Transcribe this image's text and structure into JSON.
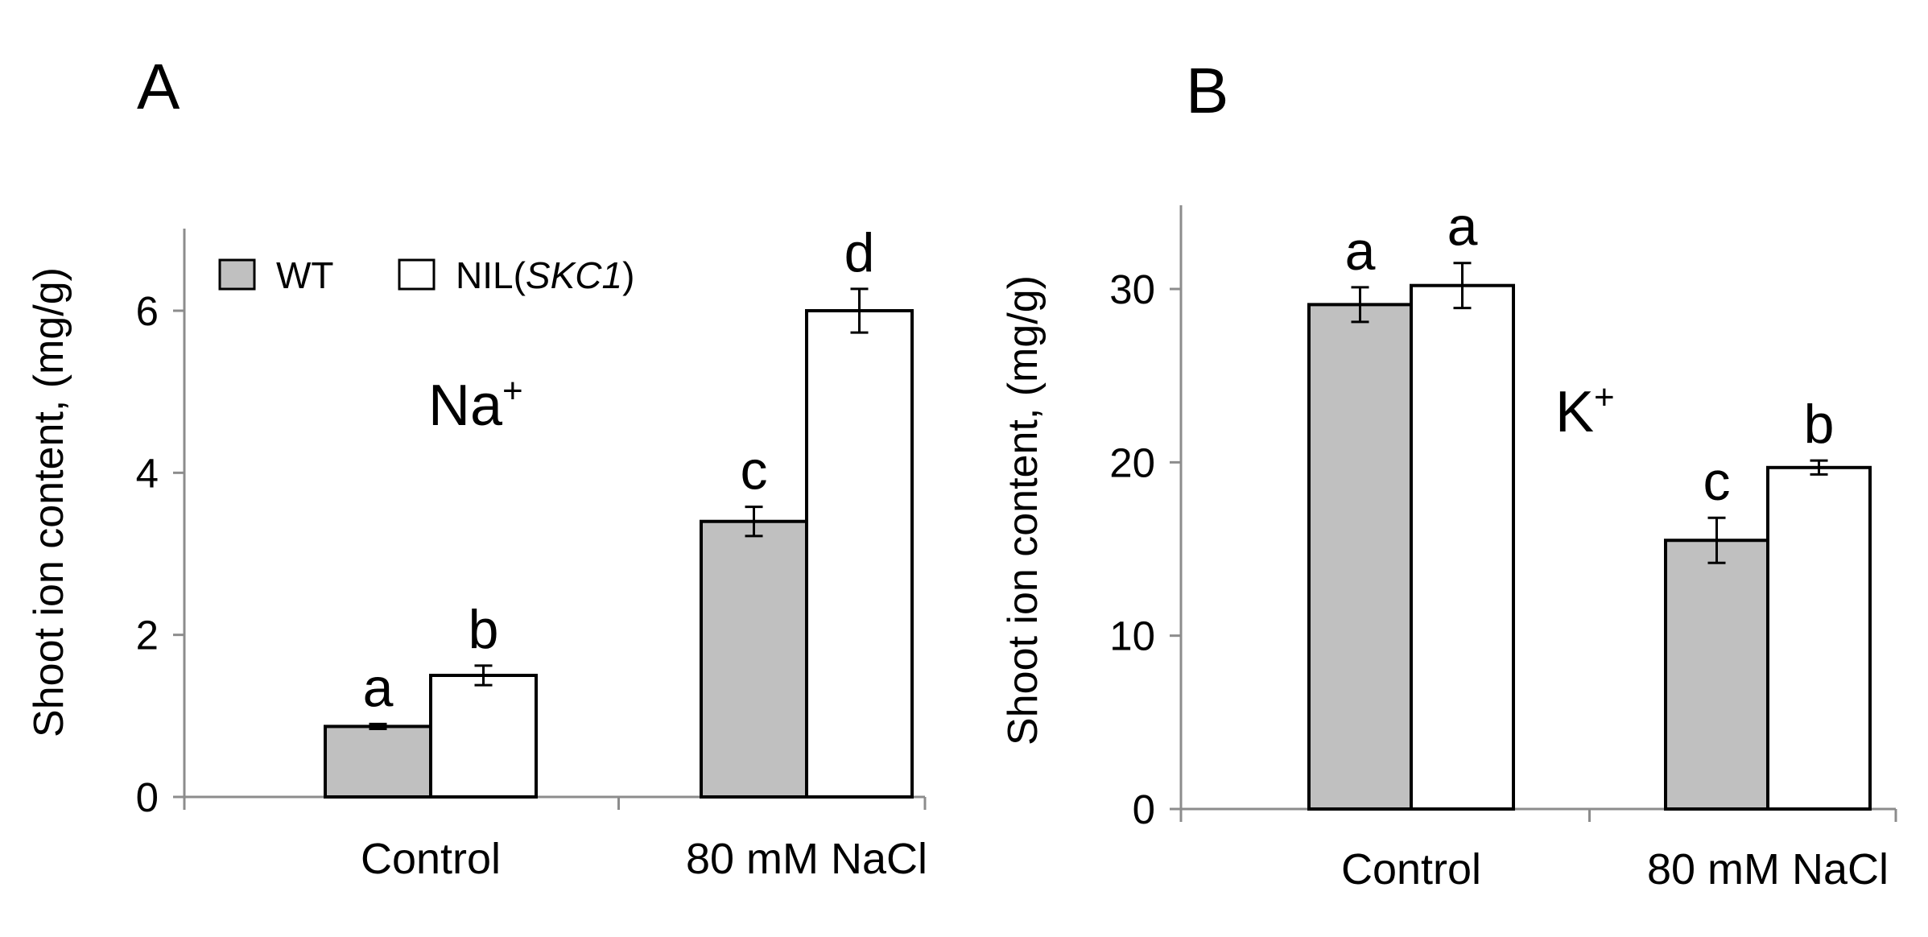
{
  "chart_data": [
    {
      "type": "bar",
      "panel_label": "A",
      "ion_label": "Na",
      "ion_charge": "+",
      "ylabel": "Shoot ion content, (mg/g)",
      "xlabel": "",
      "ylim": [
        0,
        7
      ],
      "yticks": [
        "0",
        "2",
        "4",
        "6"
      ],
      "categories": [
        "Control",
        "80 mM NaCl"
      ],
      "series": [
        {
          "name": "WT",
          "color": "#c0c0c0",
          "values": [
            0.87,
            3.4
          ],
          "errors": [
            0.03,
            0.18
          ],
          "letters": [
            "a",
            "c"
          ]
        },
        {
          "name": "NIL(SKC1)",
          "color": "#ffffff",
          "values": [
            1.5,
            6.0
          ],
          "errors": [
            0.12,
            0.27
          ],
          "letters": [
            "b",
            "d"
          ]
        }
      ],
      "legend": [
        {
          "name": "WT",
          "color": "#c0c0c0"
        },
        {
          "prefix": "NIL(",
          "italic": "SKC1",
          "suffix": ")",
          "color": "#ffffff"
        }
      ]
    },
    {
      "type": "bar",
      "panel_label": "B",
      "ion_label": "K",
      "ion_charge": "+",
      "ylabel": "Shoot ion content, (mg/g)",
      "xlabel": "",
      "ylim": [
        0,
        35
      ],
      "yticks": [
        "0",
        "10",
        "20",
        "30"
      ],
      "categories": [
        "Control",
        "80 mM NaCl"
      ],
      "series": [
        {
          "name": "WT",
          "color": "#c0c0c0",
          "values": [
            29.1,
            15.5
          ],
          "errors": [
            1.0,
            1.3
          ],
          "letters": [
            "a",
            "c"
          ]
        },
        {
          "name": "NIL(SKC1)",
          "color": "#ffffff",
          "values": [
            30.2,
            19.7
          ],
          "errors": [
            1.3,
            0.4
          ],
          "letters": [
            "a",
            "b"
          ]
        }
      ]
    }
  ]
}
